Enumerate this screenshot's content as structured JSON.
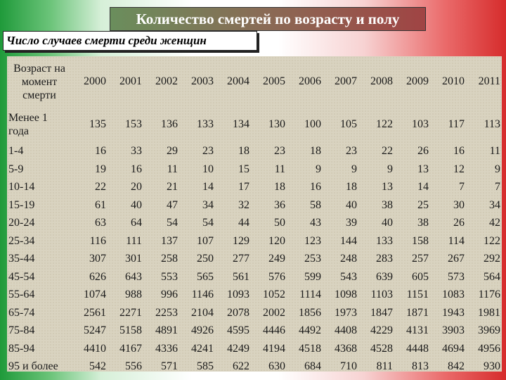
{
  "title": "Количество смертей по возрасту и полу",
  "subtitle": "Число случаев смерти среди женщин",
  "table": {
    "age_header": [
      "Возраст на",
      "момент",
      "смерти"
    ],
    "years": [
      "2000",
      "2001",
      "2002",
      "2003",
      "2004",
      "2005",
      "2006",
      "2007",
      "2008",
      "2009",
      "2010",
      "2011"
    ],
    "rows": [
      {
        "age": "Менее 1 года",
        "values": [
          135,
          153,
          136,
          133,
          134,
          130,
          100,
          105,
          122,
          103,
          117,
          113
        ]
      },
      {
        "age": "1-4",
        "values": [
          16,
          33,
          29,
          23,
          18,
          23,
          18,
          23,
          22,
          26,
          16,
          11
        ]
      },
      {
        "age": "5-9",
        "values": [
          19,
          16,
          11,
          10,
          15,
          11,
          9,
          9,
          9,
          13,
          12,
          9
        ]
      },
      {
        "age": "10-14",
        "values": [
          22,
          20,
          21,
          14,
          17,
          18,
          16,
          18,
          13,
          14,
          7,
          7
        ]
      },
      {
        "age": "15-19",
        "values": [
          61,
          40,
          47,
          34,
          32,
          36,
          58,
          40,
          38,
          25,
          30,
          34
        ]
      },
      {
        "age": "20-24",
        "values": [
          63,
          64,
          54,
          54,
          44,
          50,
          43,
          39,
          40,
          38,
          26,
          42
        ]
      },
      {
        "age": "25-34",
        "values": [
          116,
          111,
          137,
          107,
          129,
          120,
          123,
          144,
          133,
          158,
          114,
          122
        ]
      },
      {
        "age": "35-44",
        "values": [
          307,
          301,
          258,
          250,
          277,
          249,
          253,
          248,
          283,
          257,
          267,
          292
        ]
      },
      {
        "age": "45-54",
        "values": [
          626,
          643,
          553,
          565,
          561,
          576,
          599,
          543,
          639,
          605,
          573,
          564
        ]
      },
      {
        "age": "55-64",
        "values": [
          1074,
          988,
          996,
          1146,
          1093,
          1052,
          1114,
          1098,
          1103,
          1151,
          1083,
          1176
        ]
      },
      {
        "age": "65-74",
        "values": [
          2561,
          2271,
          2253,
          2104,
          2078,
          2002,
          1856,
          1973,
          1847,
          1871,
          1943,
          1981
        ]
      },
      {
        "age": "75-84",
        "values": [
          5247,
          5158,
          4891,
          4926,
          4595,
          4446,
          4492,
          4408,
          4229,
          4131,
          3903,
          3969
        ]
      },
      {
        "age": "85-94",
        "values": [
          4410,
          4167,
          4336,
          4241,
          4249,
          4194,
          4518,
          4368,
          4528,
          4448,
          4694,
          4956
        ]
      },
      {
        "age": "95 и более",
        "values": [
          542,
          556,
          571,
          585,
          622,
          630,
          684,
          710,
          811,
          813,
          842,
          930
        ]
      }
    ]
  }
}
